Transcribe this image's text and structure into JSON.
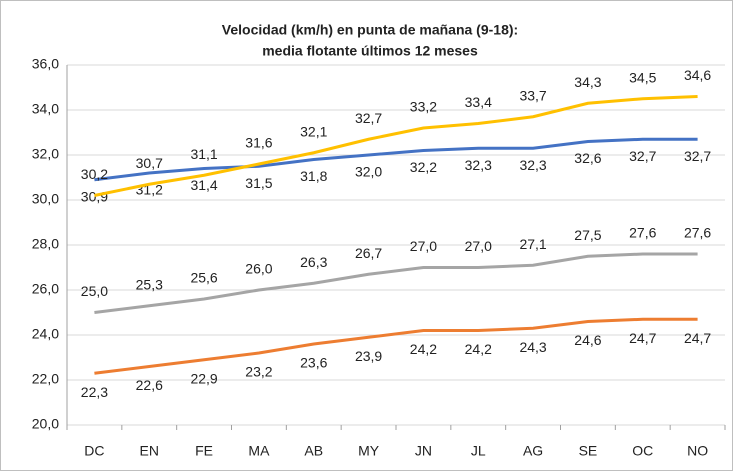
{
  "chart_data": {
    "type": "line",
    "title": [
      "Velocidad (km/h) en punta de mañana (9-18):",
      "media flotante últimos 12 meses"
    ],
    "categories": [
      "DC",
      "EN",
      "FE",
      "MA",
      "AB",
      "MY",
      "JN",
      "JL",
      "AG",
      "SE",
      "OC",
      "NO"
    ],
    "series": [
      {
        "color": "#4472c4",
        "values": [
          30.9,
          31.2,
          31.4,
          31.5,
          31.8,
          32.0,
          32.2,
          32.3,
          32.3,
          32.6,
          32.7,
          32.7
        ],
        "value_labels": [
          "30,9",
          "31,2",
          "31,4",
          "31,5",
          "31,8",
          "32,0",
          "32,2",
          "32,3",
          "32,3",
          "32,6",
          "32,7",
          "32,7"
        ]
      },
      {
        "color": "#ffc000",
        "values": [
          30.2,
          30.7,
          31.1,
          31.6,
          32.1,
          32.7,
          33.2,
          33.4,
          33.7,
          34.3,
          34.5,
          34.6
        ],
        "value_labels": [
          "30,2",
          "30,7",
          "31,1",
          "31,6",
          "32,1",
          "32,7",
          "33,2",
          "33,4",
          "33,7",
          "34,3",
          "34,5",
          "34,6"
        ]
      },
      {
        "color": "#a5a5a5",
        "values": [
          25.0,
          25.3,
          25.6,
          26.0,
          26.3,
          26.7,
          27.0,
          27.0,
          27.1,
          27.5,
          27.6,
          27.6
        ],
        "value_labels": [
          "25,0",
          "25,3",
          "25,6",
          "26,0",
          "26,3",
          "26,7",
          "27,0",
          "27,0",
          "27,1",
          "27,5",
          "27,6",
          "27,6"
        ]
      },
      {
        "color": "#ed7d31",
        "values": [
          22.3,
          22.6,
          22.9,
          23.2,
          23.6,
          23.9,
          24.2,
          24.2,
          24.3,
          24.6,
          24.7,
          24.7
        ],
        "value_labels": [
          "22,3",
          "22,6",
          "22,9",
          "23,2",
          "23,6",
          "23,9",
          "24,2",
          "24,2",
          "24,3",
          "24,6",
          "24,7",
          "24,7"
        ]
      }
    ],
    "ylim": [
      20,
      36
    ],
    "yticks": [
      {
        "value": 20,
        "label": "20,0"
      },
      {
        "value": 22,
        "label": "22,0"
      },
      {
        "value": 24,
        "label": "24,0"
      },
      {
        "value": 26,
        "label": "26,0"
      },
      {
        "value": 28,
        "label": "28,0"
      },
      {
        "value": 30,
        "label": "30,0"
      },
      {
        "value": 32,
        "label": "32,0"
      },
      {
        "value": 34,
        "label": "34,0"
      },
      {
        "value": 36,
        "label": "36,0"
      }
    ],
    "grid": true
  }
}
